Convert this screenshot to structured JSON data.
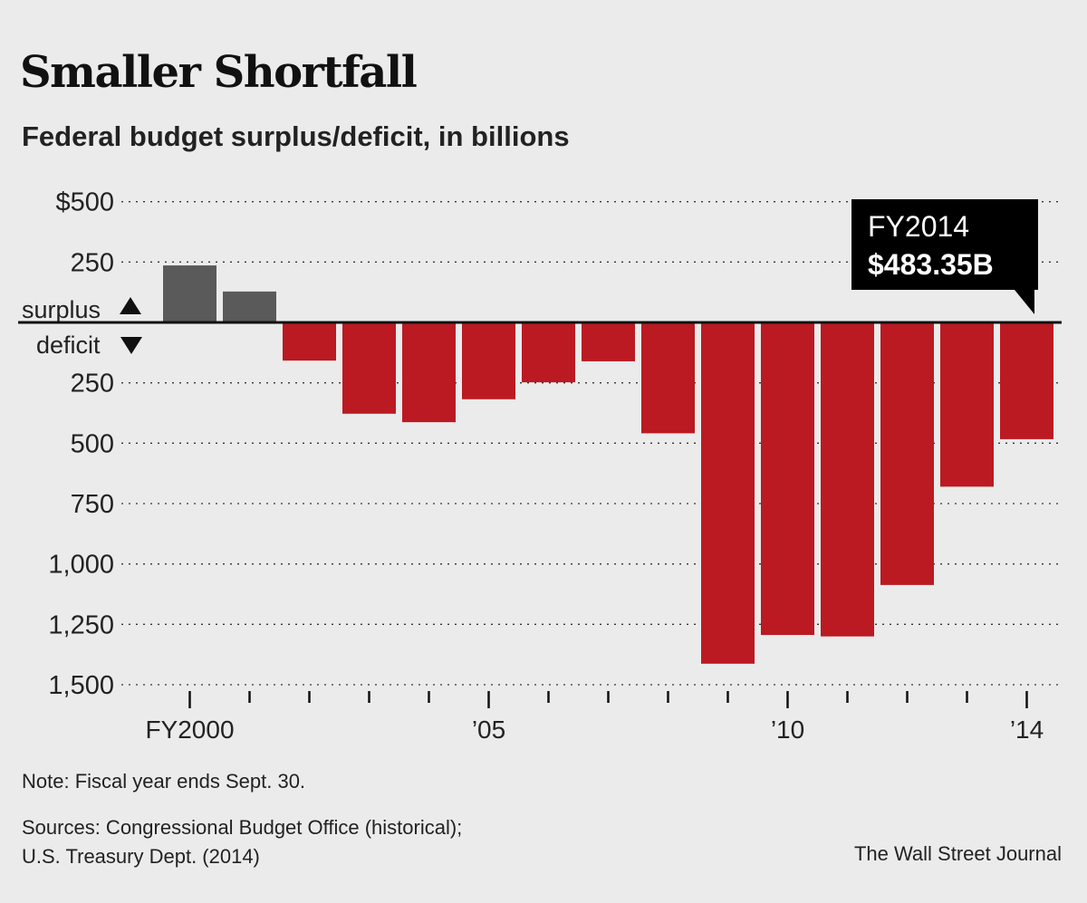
{
  "header": {
    "title": "Smaller Shortfall",
    "subtitle": "Federal budget surplus/deficit, in billions"
  },
  "footer": {
    "note": "Note: Fiscal year ends Sept. 30.",
    "sources_line1": "Sources: Congressional Budget Office (historical);",
    "sources_line2": "U.S. Treasury Dept. (2014)",
    "credit": "The Wall Street Journal"
  },
  "colors": {
    "surplus": "#5a5a5a",
    "deficit": "#bb1a22",
    "callout_bg": "#000000",
    "callout_text": "#ffffff"
  },
  "chart_data": {
    "type": "bar",
    "title": "Smaller Shortfall",
    "subtitle": "Federal budget surplus/deficit, in billions",
    "categories": [
      "2000",
      "2001",
      "2002",
      "2003",
      "2004",
      "2005",
      "2006",
      "2007",
      "2008",
      "2009",
      "2010",
      "2011",
      "2012",
      "2013",
      "2014"
    ],
    "values": [
      236,
      128,
      -158,
      -378,
      -413,
      -318,
      -248,
      -161,
      -459,
      -1413,
      -1294,
      -1300,
      -1087,
      -680,
      -483.35
    ],
    "ylim": [
      -1500,
      500
    ],
    "y_ticks": [
      {
        "value": 500,
        "label": "$500"
      },
      {
        "value": 250,
        "label": "250"
      },
      {
        "value": -250,
        "label": "250"
      },
      {
        "value": -500,
        "label": "500"
      },
      {
        "value": -750,
        "label": "750"
      },
      {
        "value": -1000,
        "label": "1,000"
      },
      {
        "value": -1250,
        "label": "1,250"
      },
      {
        "value": -1500,
        "label": "1,500"
      }
    ],
    "x_tick_labels": [
      {
        "index": 0,
        "label": "FY2000"
      },
      {
        "index": 5,
        "label": "’05"
      },
      {
        "index": 10,
        "label": "’10"
      },
      {
        "index": 14,
        "label": "’14"
      }
    ],
    "zero_labels": {
      "above": "surplus",
      "below": "deficit"
    },
    "grid": true,
    "callout": {
      "index": 14,
      "line1": "FY2014",
      "line2": "$483.35B"
    }
  }
}
